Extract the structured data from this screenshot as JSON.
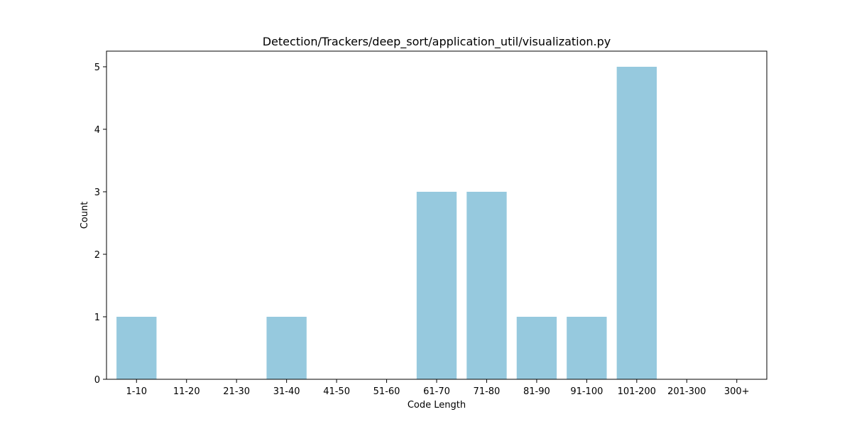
{
  "chart_data": {
    "type": "bar",
    "title": "Detection/Trackers/deep_sort/application_util/visualization.py",
    "xlabel": "Code Length",
    "ylabel": "Count",
    "categories": [
      "1-10",
      "11-20",
      "21-30",
      "31-40",
      "41-50",
      "51-60",
      "61-70",
      "71-80",
      "81-90",
      "91-100",
      "101-200",
      "201-300",
      "300+"
    ],
    "values": [
      1,
      0,
      0,
      1,
      0,
      0,
      3,
      3,
      1,
      1,
      5,
      0,
      0
    ],
    "yticks": [
      0,
      1,
      2,
      3,
      4,
      5
    ],
    "ylim": [
      0,
      5.25
    ],
    "grid": false,
    "bar_color": "#96c9de"
  }
}
